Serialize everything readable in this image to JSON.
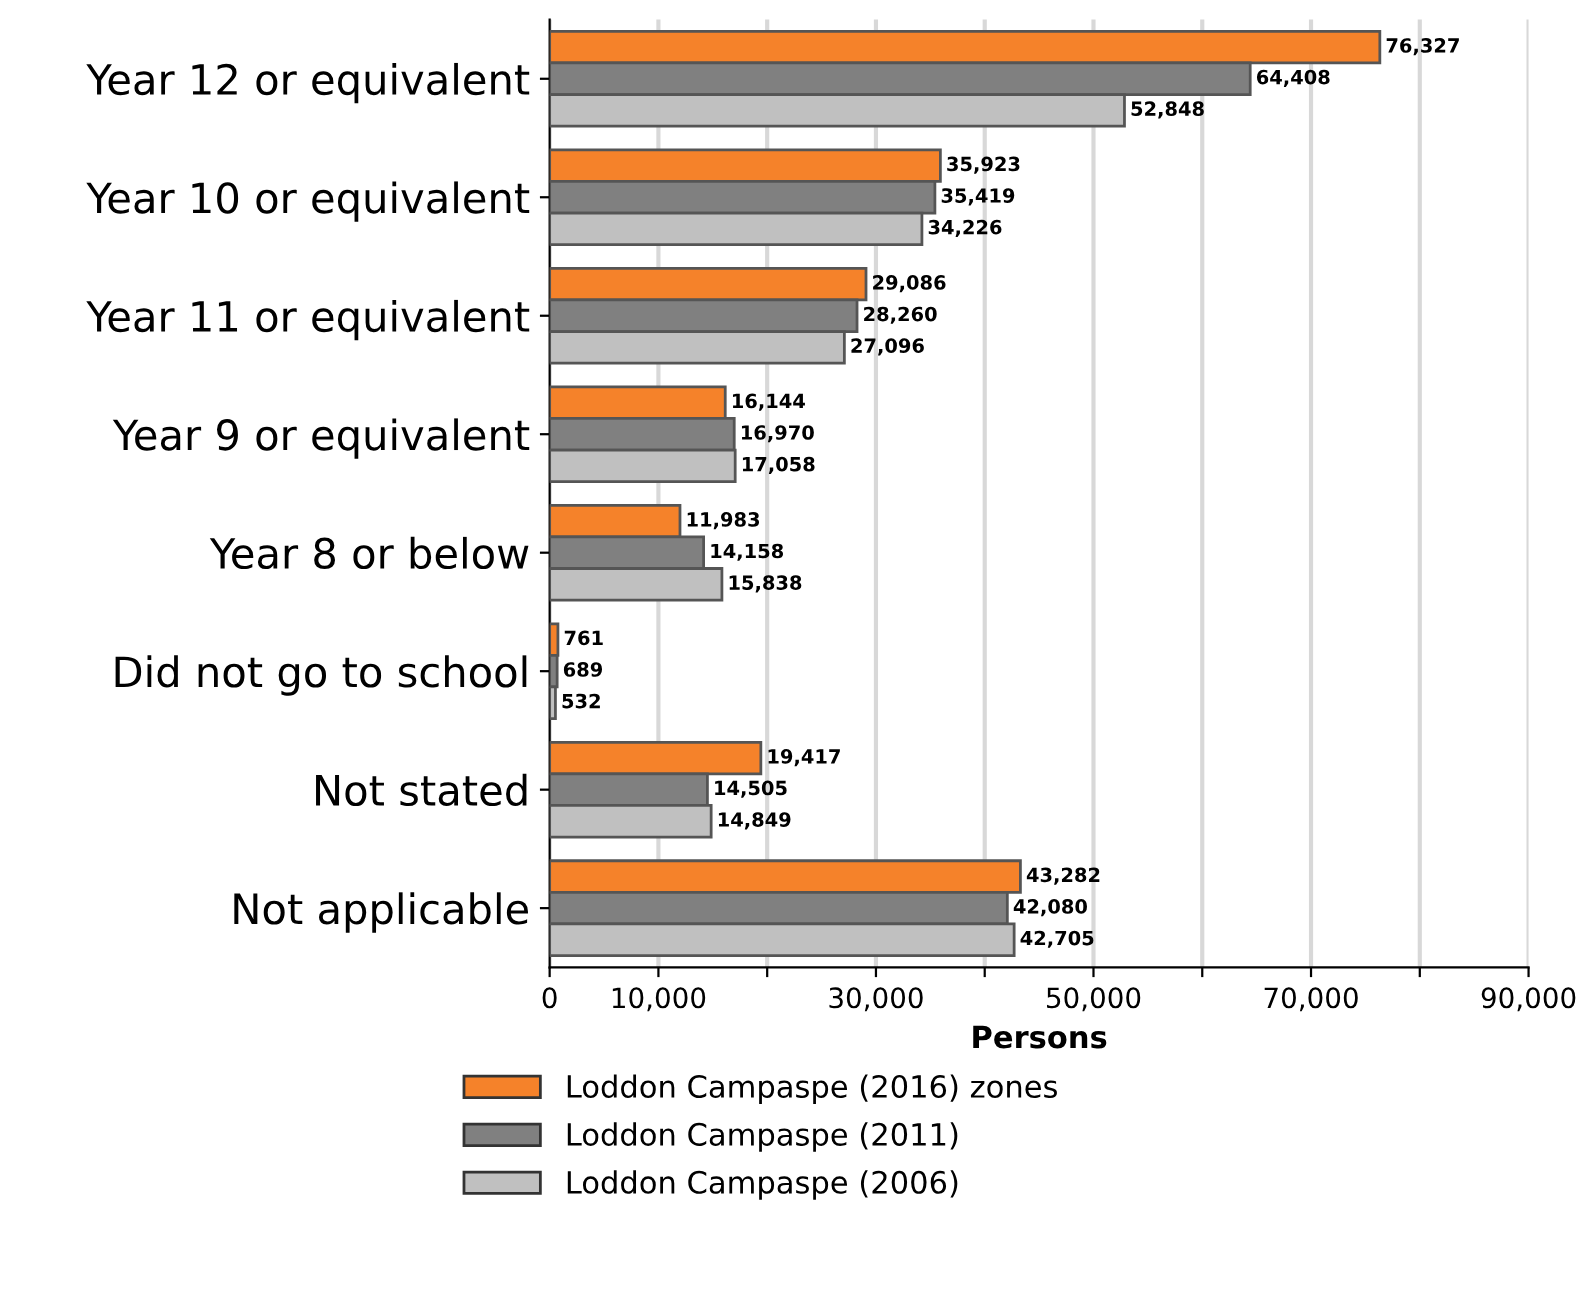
{
  "chart_data": {
    "type": "bar",
    "orientation": "horizontal",
    "xlabel": "Persons",
    "categories": [
      "Year 12 or equivalent",
      "Year 10 or equivalent",
      "Year 11 or equivalent",
      "Year 9 or equivalent",
      "Year 8 or below",
      "Did not go to school",
      "Not stated",
      "Not applicable"
    ],
    "series": [
      {
        "name": "Loddon Campaspe (2016) zones",
        "color": "#f5822a",
        "values": [
          76327,
          35923,
          29086,
          16144,
          11983,
          761,
          19417,
          43282
        ],
        "value_labels": [
          "76,327",
          "35,923",
          "29,086",
          "16,144",
          "11,983",
          "761",
          "19,417",
          "43,282"
        ]
      },
      {
        "name": "Loddon Campaspe (2011)",
        "color": "#808080",
        "values": [
          64408,
          35419,
          28260,
          16970,
          14158,
          689,
          14505,
          42080
        ],
        "value_labels": [
          "64,408",
          "35,419",
          "28,260",
          "16,970",
          "14,158",
          "689",
          "14,505",
          "42,080"
        ]
      },
      {
        "name": "Loddon Campaspe (2006)",
        "color": "#c0c0c0",
        "values": [
          52848,
          34226,
          27096,
          17058,
          15838,
          532,
          14849,
          42705
        ],
        "value_labels": [
          "52,848",
          "34,226",
          "27,096",
          "17,058",
          "15,838",
          "532",
          "14,849",
          "42,705"
        ]
      }
    ],
    "xlim": [
      0,
      90000
    ],
    "xticks": [
      0,
      {
        "value": 10000,
        "label": "10,000"
      },
      {
        "value": 20000,
        "label": null
      },
      {
        "value": 30000,
        "label": "30,000"
      },
      {
        "value": 40000,
        "label": null
      },
      {
        "value": 50000,
        "label": "50,000"
      },
      {
        "value": 60000,
        "label": null
      },
      {
        "value": 70000,
        "label": "70,000"
      },
      {
        "value": 80000,
        "label": null
      },
      {
        "value": 90000,
        "label": "90,000"
      }
    ],
    "grid": "x",
    "legend": "bottom"
  }
}
